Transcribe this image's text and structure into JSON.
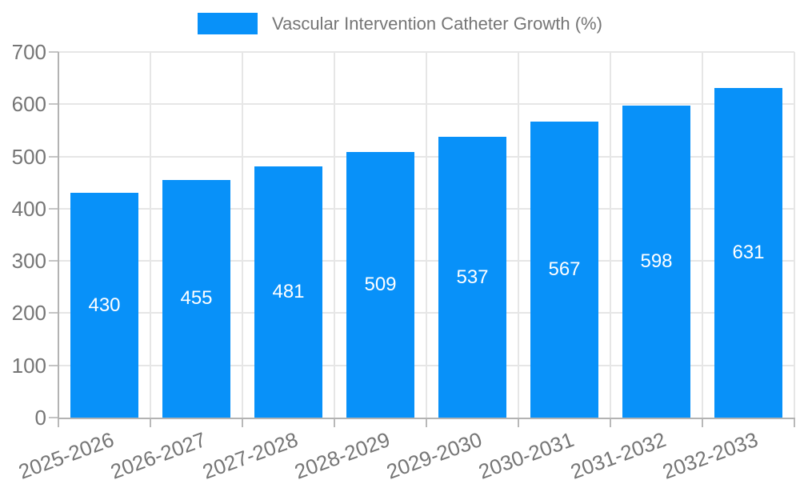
{
  "chart_data": {
    "type": "bar",
    "title": "",
    "legend_label": "Vascular Intervention Catheter Growth (%)",
    "categories": [
      "2025-2026",
      "2026-2027",
      "2027-2028",
      "2028-2029",
      "2029-2030",
      "2030-2031",
      "2031-2032",
      "2032-2033"
    ],
    "series": [
      {
        "name": "Vascular Intervention Catheter Growth (%)",
        "values": [
          430,
          455,
          481,
          509,
          537,
          567,
          598,
          631
        ]
      }
    ],
    "value_labels": [
      "430",
      "455",
      "481",
      "509",
      "537",
      "567",
      "598",
      "631"
    ],
    "xlabel": "",
    "ylabel": "",
    "ylim": [
      0,
      700
    ],
    "yticks": [
      0,
      100,
      200,
      300,
      400,
      500,
      600,
      700
    ],
    "grid": "on",
    "legend_position": "top-center",
    "colors": {
      "bar": "#0891f9",
      "bar_value_text": "#ffffff",
      "tick_text": "#757575",
      "legend_text": "#757575",
      "gridline": "#e6e6e6",
      "axis_line": "#b3b3b3",
      "background": "#ffffff"
    }
  }
}
